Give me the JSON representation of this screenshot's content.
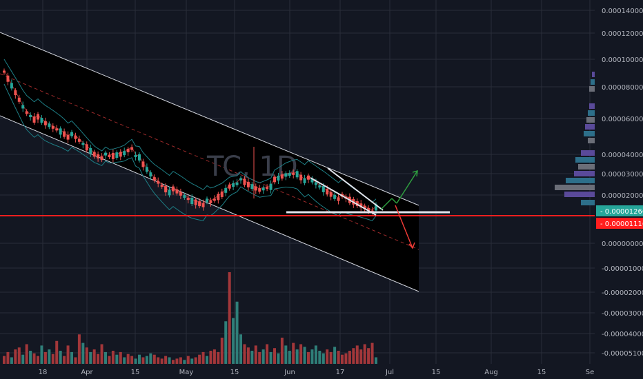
{
  "chart_data": {
    "type": "candlestick",
    "title": "",
    "xlabel": "",
    "ylabel": "",
    "watermark": "TC, 1D",
    "colors": {
      "background": "#131722",
      "up": "#26a69a",
      "down": "#ef5350",
      "volume_up": "#2f7f79",
      "volume_down": "#a3373a",
      "channel_fill": "#000000",
      "channel_line": "#d1d4dc",
      "bollinger": "#1e7f86",
      "midline": "#9b2a2a",
      "support": "#e0e3eb",
      "red_line": "#ff1e1e",
      "green_arrow": "#2e9e3f",
      "red_arrow": "#ef3b36",
      "grid": "#2a2e39"
    },
    "y_axis": {
      "ticks": [
        "0.00014000",
        "0.00012000",
        "0.00010000",
        "0.00008000",
        "0.00006000",
        "0.00004000",
        "0.00003000",
        "0.00002000",
        "0.00000000",
        "-0.00001000",
        "-0.00002000",
        "-0.00003000",
        "-0.00004000",
        "-0.00005100"
      ],
      "price_labels": [
        {
          "text": "0.00001266",
          "color": "#26a69a"
        },
        {
          "text": "0.00001116",
          "color": "#ff1e1e"
        }
      ]
    },
    "x_axis": {
      "ticks": [
        "18",
        "Apr",
        "15",
        "May",
        "15",
        "Jun",
        "17",
        "Jul",
        "15",
        "Aug",
        "15",
        "Se"
      ]
    },
    "grid": true,
    "candles_direction": [
      "d",
      "d",
      "u",
      "d",
      "d",
      "u",
      "d",
      "u",
      "d",
      "d",
      "u",
      "d",
      "u",
      "d",
      "d",
      "u",
      "d",
      "d",
      "u",
      "d",
      "d",
      "u",
      "d",
      "u",
      "d",
      "d",
      "d",
      "u",
      "d",
      "d",
      "u",
      "d",
      "u",
      "d",
      "d",
      "u",
      "u",
      "d",
      "u",
      "u",
      "d",
      "d",
      "d",
      "d",
      "u",
      "d",
      "d",
      "d",
      "u",
      "d",
      "u",
      "d",
      "d",
      "d",
      "u",
      "d",
      "d",
      "d",
      "d",
      "u",
      "d",
      "u",
      "u",
      "u",
      "d",
      "d",
      "u",
      "d",
      "d",
      "u",
      "d",
      "u",
      "d",
      "u",
      "d",
      "u",
      "u",
      "d",
      "u",
      "d",
      "u",
      "d",
      "u",
      "u",
      "u",
      "u",
      "d",
      "d",
      "u",
      "d",
      "d",
      "d",
      "d",
      "d",
      "d",
      "d",
      "d",
      "d",
      "d",
      "u"
    ],
    "volume": [
      12,
      18,
      10,
      22,
      25,
      14,
      30,
      20,
      16,
      12,
      28,
      18,
      22,
      15,
      35,
      20,
      12,
      28,
      18,
      10,
      45,
      32,
      25,
      18,
      22,
      15,
      30,
      18,
      12,
      20,
      14,
      18,
      10,
      15,
      12,
      8,
      14,
      10,
      12,
      16,
      14,
      10,
      8,
      12,
      10,
      6,
      8,
      10,
      6,
      12,
      8,
      10,
      14,
      18,
      12,
      20,
      22,
      18,
      40,
      65,
      140,
      70,
      95,
      45,
      30,
      25,
      20,
      28,
      18,
      22,
      30,
      18,
      24,
      16,
      40,
      28,
      20,
      32,
      22,
      30,
      26,
      18,
      22,
      28,
      20,
      16,
      22,
      18,
      26,
      20,
      14,
      16,
      20,
      24,
      28,
      22,
      30,
      24,
      32,
      10
    ]
  }
}
